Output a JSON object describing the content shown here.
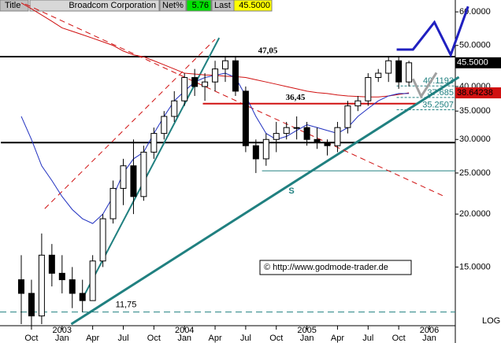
{
  "header": {
    "title": "Title",
    "name": "Broadcom Corporation",
    "net_label": "Net%",
    "net": 5.76,
    "last_label": "Last",
    "last": {
      "value": 45.5,
      "label": "45.5000"
    }
  },
  "chart_data": {
    "type": "candlestick",
    "log_scale": true,
    "grid": false,
    "categories": [
      null,
      "Oct",
      null,
      null,
      "Jan",
      null,
      null,
      "Apr",
      null,
      null,
      "Jul",
      null,
      null,
      "Oct",
      null,
      null,
      "Jan",
      null,
      null,
      "Apr",
      null,
      null,
      "Jul",
      null,
      null,
      "Oct",
      null,
      null,
      "Jan",
      null,
      null,
      "Apr",
      null,
      null,
      "Jul",
      null,
      null,
      "Oct",
      null,
      null,
      "Jan",
      null
    ],
    "years": [
      null,
      null,
      null,
      null,
      "2003",
      null,
      null,
      null,
      null,
      null,
      null,
      null,
      null,
      null,
      null,
      null,
      "2004",
      null,
      null,
      null,
      null,
      null,
      null,
      null,
      null,
      null,
      null,
      null,
      "2005",
      null,
      null,
      null,
      null,
      null,
      null,
      null,
      null,
      null,
      null,
      null,
      "2006",
      null
    ],
    "open": [
      14,
      13,
      11.5,
      16,
      14.5,
      14,
      13,
      12.5,
      15.5,
      19.5,
      23,
      26,
      22,
      28,
      31,
      34,
      37,
      42,
      40,
      41,
      44,
      46,
      39,
      29,
      27,
      30,
      31,
      32,
      32,
      30,
      29.5,
      29,
      32,
      36,
      37,
      42,
      43,
      46,
      41,
      null,
      null,
      null
    ],
    "high": [
      16,
      14,
      18,
      17,
      16,
      15,
      14,
      16,
      20,
      24,
      27,
      30,
      29,
      32,
      35,
      39,
      43,
      44,
      43,
      46,
      47.05,
      47,
      40,
      30,
      31,
      33,
      33,
      34,
      33,
      32,
      30,
      33,
      37,
      38,
      43,
      44,
      47,
      47,
      46,
      null,
      null,
      null
    ],
    "low": [
      11,
      10.9,
      11,
      13.5,
      13,
      12,
      11.75,
      12.5,
      15,
      19,
      21,
      20,
      21.5,
      27,
      30,
      33,
      36,
      38,
      37,
      39,
      41,
      38,
      28,
      25,
      26,
      28,
      30,
      30,
      29,
      28.5,
      27.5,
      28,
      31,
      35,
      36,
      41,
      41,
      39.5,
      40,
      null,
      null,
      null
    ],
    "close": [
      13,
      11.5,
      16,
      14.5,
      14,
      13,
      12.5,
      15.5,
      19.5,
      23,
      26,
      22,
      28,
      31,
      34,
      37,
      42,
      40,
      41,
      44,
      46,
      39,
      29,
      27,
      30,
      31,
      32,
      32,
      30,
      29.5,
      29,
      32,
      36,
      37,
      42,
      43,
      46,
      41,
      45.5,
      null,
      null,
      null
    ],
    "candle_color": "#000000",
    "series": [
      {
        "color": "#d01010",
        "values": [
          63,
          61,
          59,
          57,
          55,
          54,
          53,
          52,
          51,
          50,
          48.5,
          47.5,
          47,
          46,
          45,
          44,
          43,
          42.8,
          42.6,
          42.5,
          42.3,
          42.2,
          42,
          41.5,
          41,
          40.5,
          40,
          39.5,
          39,
          38.7,
          38.5,
          38.2,
          38,
          37.9,
          37.8,
          37.8,
          38,
          38.3,
          38.64238,
          null,
          null,
          null
        ]
      },
      {
        "color": "#2030c0",
        "values": [
          34,
          30,
          26,
          24,
          22,
          20.5,
          19.5,
          19,
          20,
          22,
          25,
          27,
          28,
          31,
          34,
          37,
          39,
          41,
          42,
          42.5,
          43,
          42,
          38,
          34,
          31,
          30,
          30.5,
          31.5,
          32.5,
          32,
          31.5,
          31,
          32,
          34,
          35.5,
          37,
          38,
          38.5,
          38.5,
          null,
          null,
          null
        ]
      }
    ],
    "ma_label": {
      "value": 38.64238,
      "label": "38.64238"
    },
    "ylim": [
      11,
      64
    ],
    "yticks": [
      {
        "value": 15,
        "label": "15.0000"
      },
      {
        "value": 20,
        "label": "20.0000"
      },
      {
        "value": 25,
        "label": "25.0000"
      },
      {
        "value": 30,
        "label": "30.0000"
      },
      {
        "value": 35,
        "label": "35.0000"
      },
      {
        "value": 40,
        "label": "40.0000"
      },
      {
        "value": 50,
        "label": "50.0000"
      },
      {
        "value": 60,
        "label": "60.0000"
      }
    ],
    "scale_label": "LOG",
    "levels": [
      {
        "value": 47.05,
        "label": "47,05",
        "color": "#000000"
      },
      {
        "value": 36.45,
        "label": "36,45",
        "color": "#d01010",
        "from": 17.8,
        "to": 38.8
      },
      {
        "value": 11.75,
        "label": "11,75",
        "color": "#208080",
        "dash": true
      }
    ],
    "fib_levels": [
      40.1193,
      37.685,
      35.2507
    ],
    "fib_color": "#208080",
    "overlays": [
      {
        "x": [
          -2,
          42.5
        ],
        "y": [
          29.5,
          29.5
        ],
        "color": "#000000",
        "width": 2
      },
      {
        "x": [
          23.6,
          42.5
        ],
        "y": [
          25.3,
          25.3
        ],
        "color": "#208080",
        "width": 1
      },
      {
        "x": [
          6.2,
          19.4
        ],
        "y": [
          12.9,
          52.1
        ],
        "color": "#208080",
        "width": 2
      },
      {
        "x": [
          4.9,
          42.9
        ],
        "y": [
          11,
          42.1
        ],
        "color": "#208080",
        "width": 3
      },
      {
        "x": [
          0.4,
          41.5
        ],
        "y": [
          62.6,
          22
        ],
        "color": "#d01010",
        "width": 1,
        "dash": true
      },
      {
        "x": [
          2.3,
          19
        ],
        "y": [
          20.6,
          51.7
        ],
        "color": "#d01010",
        "width": 1,
        "dash": true
      },
      {
        "x": [
          36.8,
          38.4,
          40.5,
          42.1,
          43.8
        ],
        "y": [
          48.9,
          48.9,
          56.7,
          47.5,
          61.8
        ],
        "color": "#2020c0",
        "width": 3
      },
      {
        "x": [
          38.4,
          39.2,
          40.7
        ],
        "y": [
          41.7,
          37.9,
          43.1
        ],
        "color": "#a0a0a0",
        "width": 3
      }
    ],
    "trend_label": "S",
    "copyright": "© http://www.godmode-trader.de"
  }
}
